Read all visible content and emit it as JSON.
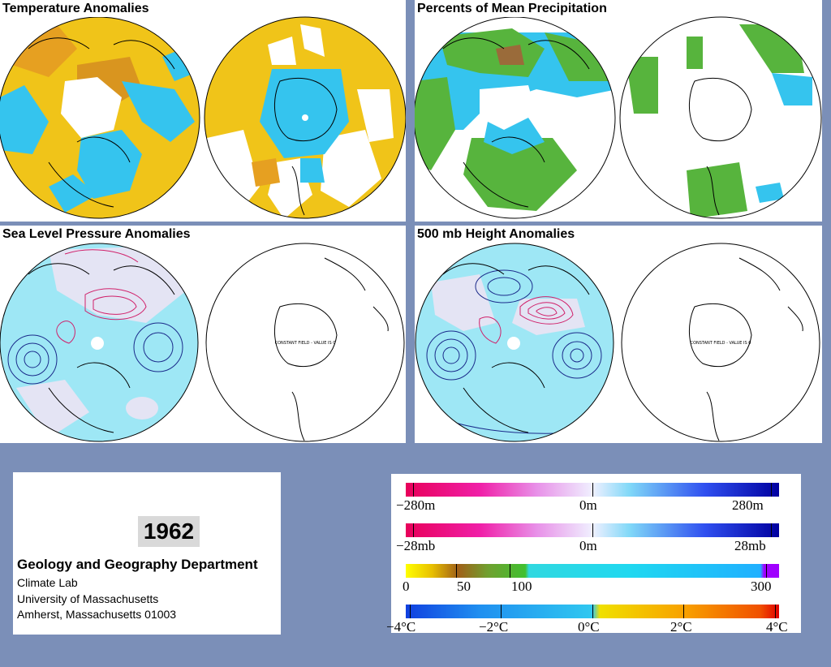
{
  "panels": {
    "temperature": {
      "title": "Temperature Anomalies"
    },
    "precipitation": {
      "title": "Percents of Mean Precipitation"
    },
    "sea_level_pressure": {
      "title": "Sea Level Pressure Anomalies",
      "note": "CONSTANT FIELD - VALUE IS 0"
    },
    "height_500mb": {
      "title": "500 mb Height Anomalies",
      "note": "CONSTANT FIELD - VALUE IS 0"
    }
  },
  "info": {
    "year": "1962",
    "department": "Geology and Geography Department",
    "lab": "Climate Lab",
    "university": "University of Massachusetts",
    "address": "Amherst, Massachusetts 01003"
  },
  "legend": {
    "height": {
      "labels": [
        "−280m",
        "0m",
        "280m"
      ]
    },
    "pressure": {
      "labels": [
        "−28mb",
        "0m",
        "28mb"
      ]
    },
    "precip": {
      "labels": [
        "0",
        "50",
        "100",
        "300"
      ]
    },
    "temp": {
      "labels": [
        "−4°C",
        "−2°C",
        "0°C",
        "2°C",
        "4°C"
      ]
    }
  },
  "colors": {
    "background": "#7b8fb8",
    "warm": "#f0c419",
    "cold": "#35c4ee",
    "cold_dark": "#1f97e0",
    "green": "#57b43d",
    "positive_contour": "#d0206a",
    "negative_contour": "#1a2a8a"
  }
}
